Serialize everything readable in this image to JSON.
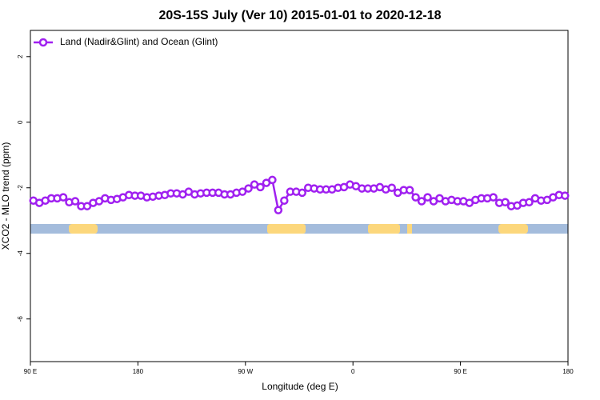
{
  "chart_data": {
    "type": "line",
    "title": "20S-15S July (Ver 10)   2015-01-01 to 2020-12-18",
    "x_label": "Longitude (deg E)",
    "y_label": "XCO2 - MLO trend (ppm)",
    "x": [
      92.5,
      97.5,
      102.5,
      107.5,
      112.5,
      117.5,
      122.5,
      127.5,
      132.5,
      137.5,
      142.5,
      147.5,
      152.5,
      157.5,
      162.5,
      167.5,
      172.5,
      177.5,
      182.5,
      187.5,
      192.5,
      197.5,
      202.5,
      207.5,
      212.5,
      217.5,
      222.5,
      227.5,
      232.5,
      237.5,
      242.5,
      247.5,
      252.5,
      257.5,
      262.5,
      267.5,
      272.5,
      277.5,
      282.5,
      287.5,
      292.5,
      297.5,
      302.5,
      307.5,
      312.5,
      317.5,
      322.5,
      327.5,
      332.5,
      337.5,
      342.5,
      347.5,
      352.5,
      357.5,
      362.5,
      367.5,
      372.5,
      377.5,
      382.5,
      387.5,
      392.5,
      397.5,
      402.5,
      407.5,
      412.5,
      417.5,
      422.5,
      427.5,
      432.5,
      437.5,
      442.5,
      447.5,
      452.5,
      457.5,
      462.5,
      467.5,
      472.5,
      477.5,
      482.5,
      487.5,
      492.5,
      497.5,
      502.5,
      507.5,
      512.5,
      517.5,
      522.5,
      527.5,
      532.5,
      537.5
    ],
    "series": [
      {
        "name": "Land (Nadir&Glint) and Ocean (Glint)",
        "color": "#a020f0",
        "values": [
          -2.39,
          -2.46,
          -2.39,
          -2.32,
          -2.32,
          -2.29,
          -2.44,
          -2.41,
          -2.56,
          -2.56,
          -2.46,
          -2.41,
          -2.32,
          -2.37,
          -2.34,
          -2.29,
          -2.22,
          -2.24,
          -2.24,
          -2.29,
          -2.27,
          -2.24,
          -2.22,
          -2.17,
          -2.17,
          -2.2,
          -2.12,
          -2.2,
          -2.17,
          -2.15,
          -2.15,
          -2.15,
          -2.2,
          -2.2,
          -2.15,
          -2.12,
          -2.02,
          -1.9,
          -1.98,
          -1.85,
          -1.76,
          -2.68,
          -2.39,
          -2.12,
          -2.12,
          -2.15,
          -2.0,
          -2.02,
          -2.05,
          -2.05,
          -2.05,
          -2.0,
          -1.98,
          -1.9,
          -1.95,
          -2.02,
          -2.02,
          -2.02,
          -1.98,
          -2.05,
          -2.0,
          -2.15,
          -2.07,
          -2.07,
          -2.29,
          -2.41,
          -2.29,
          -2.41,
          -2.32,
          -2.41,
          -2.37,
          -2.41,
          -2.41,
          -2.46,
          -2.37,
          -2.32,
          -2.32,
          -2.29,
          -2.46,
          -2.44,
          -2.56,
          -2.54,
          -2.46,
          -2.44,
          -2.32,
          -2.39,
          -2.37,
          -2.29,
          -2.22,
          -2.24
        ]
      }
    ],
    "xlim": [
      90,
      540
    ],
    "xticks": [
      {
        "value": 90,
        "label": "90 E"
      },
      {
        "value": 180,
        "label": "180"
      },
      {
        "value": 270,
        "label": "90 W"
      },
      {
        "value": 360,
        "label": "0"
      },
      {
        "value": 450,
        "label": "90 E"
      },
      {
        "value": 540,
        "label": "180"
      }
    ],
    "ylim": [
      -7.3,
      2.8
    ],
    "yticks": [
      -6,
      -4,
      -2,
      0,
      2
    ],
    "legend": "topleft"
  }
}
